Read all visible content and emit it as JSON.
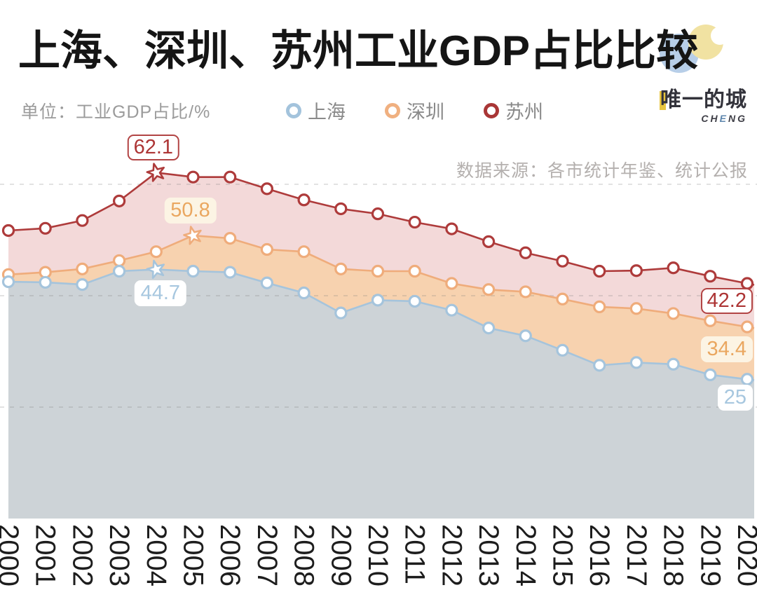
{
  "title": "上海、深圳、苏州工业GDP占比比较",
  "unit_label": "单位：工业GDP占比/%",
  "source_note": "数据来源：各市统计年鉴、统计公报",
  "logo": {
    "name_cn": "唯一的城",
    "sub_pre": "CH",
    "sub_mid": "E",
    "sub_post": "NG",
    "accent_color": "#e8c53e"
  },
  "legend": [
    {
      "label": "上海",
      "color": "#a3c3dc"
    },
    {
      "label": "深圳",
      "color": "#f0b080"
    },
    {
      "label": "苏州",
      "color": "#a93636"
    }
  ],
  "chart_data": {
    "type": "area",
    "title": "上海、深圳、苏州工业GDP占比比较",
    "xlabel": "",
    "ylabel": "工业GDP占比/%",
    "legend_position": "top",
    "grid": {
      "horizontal": true,
      "style": "dashed",
      "values": [
        20,
        40,
        60
      ]
    },
    "ylim": [
      0,
      67
    ],
    "x": [
      2000,
      2001,
      2002,
      2003,
      2004,
      2005,
      2006,
      2007,
      2008,
      2009,
      2010,
      2011,
      2012,
      2013,
      2014,
      2015,
      2016,
      2017,
      2018,
      2019,
      2020
    ],
    "series": [
      {
        "name": "苏州",
        "line_color": "#ae3b3b",
        "fill_color": "#f3d9d9",
        "marker": "circle",
        "star_year": 2004,
        "values": [
          51.7,
          52.1,
          53.5,
          57.0,
          62.1,
          61.3,
          61.3,
          59.2,
          57.2,
          55.6,
          54.7,
          53.2,
          52.0,
          49.7,
          47.7,
          46.2,
          44.4,
          44.5,
          45.0,
          43.5,
          42.2
        ]
      },
      {
        "name": "深圳",
        "line_color": "#efac7b",
        "fill_color": "#f7d2af",
        "marker": "circle",
        "star_year": 2005,
        "values": [
          43.8,
          44.2,
          44.8,
          46.3,
          47.9,
          50.8,
          50.3,
          48.3,
          47.9,
          44.8,
          44.4,
          44.4,
          42.2,
          41.1,
          40.7,
          39.4,
          38.0,
          37.7,
          36.8,
          35.5,
          34.4
        ]
      },
      {
        "name": "上海",
        "line_color": "#a5c4dc",
        "fill_color": "#cdd3d7",
        "marker": "circle",
        "star_year": 2004,
        "values": [
          42.5,
          42.4,
          42.0,
          44.4,
          44.7,
          44.4,
          44.2,
          42.3,
          40.5,
          36.9,
          39.2,
          39.0,
          37.4,
          34.2,
          32.8,
          30.2,
          27.5,
          28.0,
          27.7,
          25.8,
          25
        ]
      }
    ],
    "annotations": [
      {
        "series": "苏州",
        "year": 2004,
        "text": "62.1",
        "position": "above"
      },
      {
        "series": "深圳",
        "year": 2005,
        "text": "50.8",
        "position": "above"
      },
      {
        "series": "上海",
        "year": 2004,
        "text": "44.7",
        "position": "below"
      },
      {
        "series": "苏州",
        "year": 2020,
        "text": "42.2",
        "position": "right"
      },
      {
        "series": "深圳",
        "year": 2020,
        "text": "34.4",
        "position": "right"
      },
      {
        "series": "上海",
        "year": 2020,
        "text": "25",
        "position": "right"
      }
    ]
  }
}
